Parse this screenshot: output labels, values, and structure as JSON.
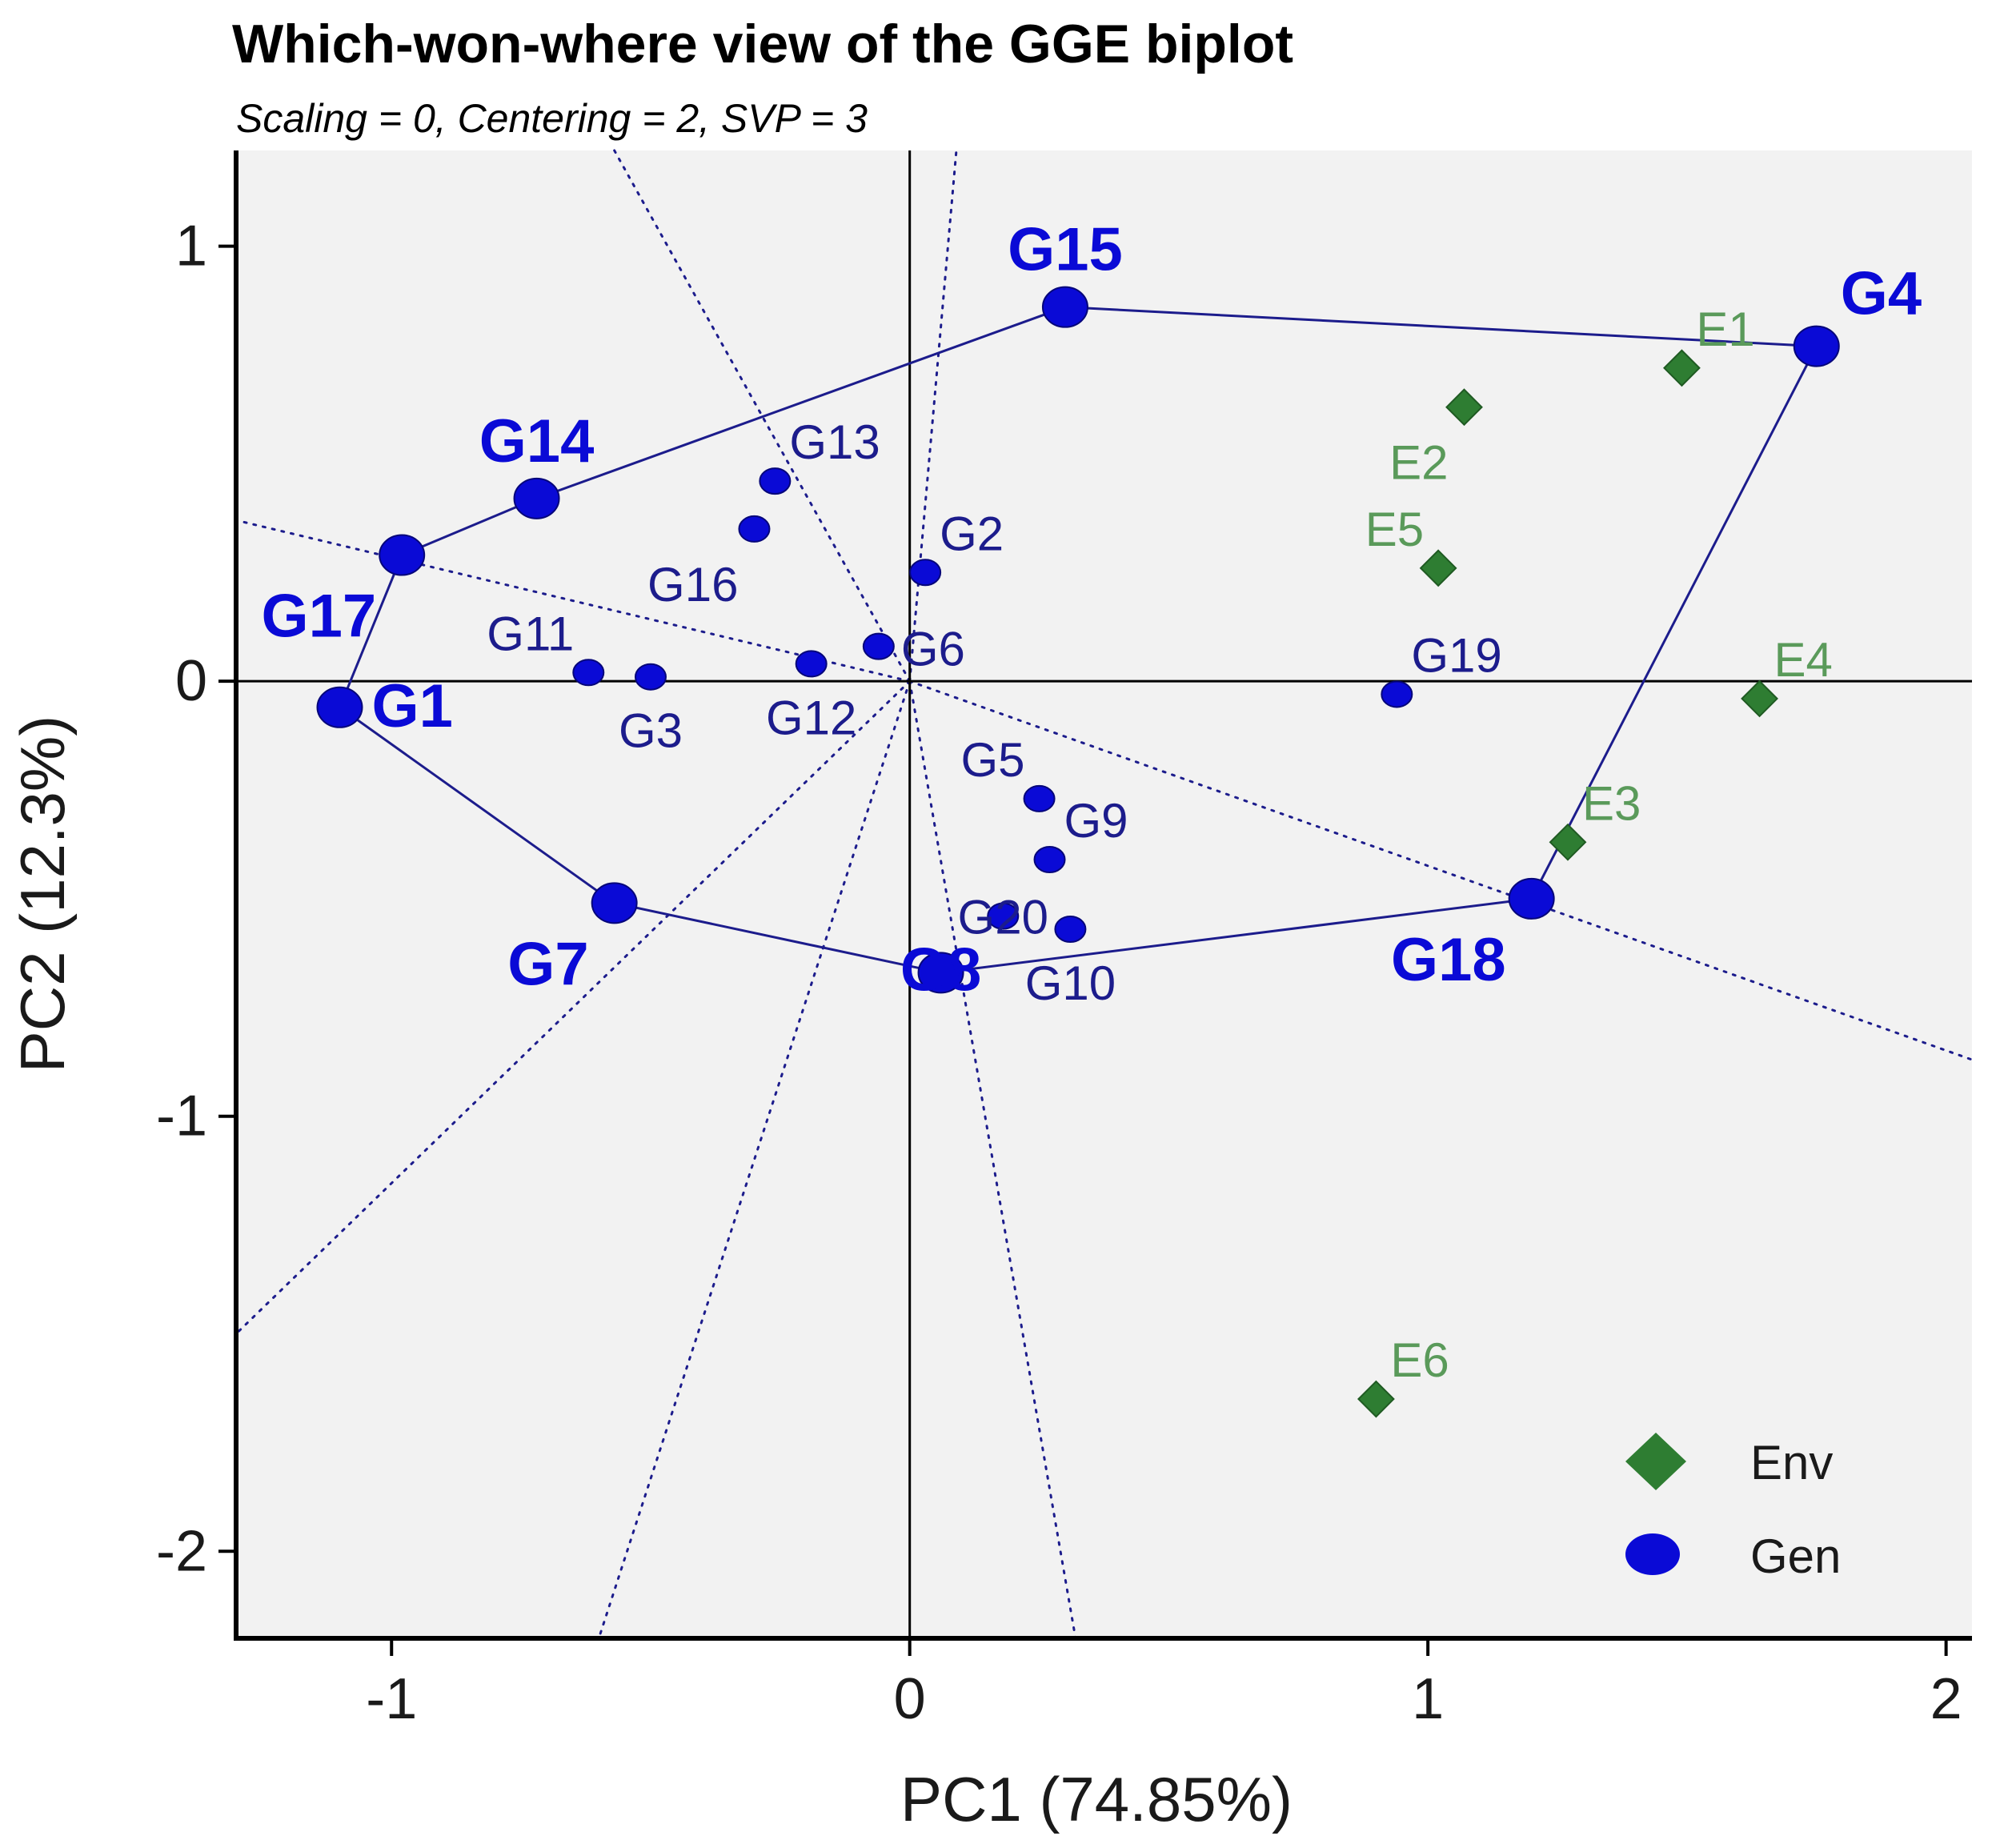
{
  "chart_data": {
    "type": "scatter",
    "title": "Which-won-where view of the GGE biplot",
    "subtitle": "Scaling = 0, Centering = 2, SVP = 3",
    "xlabel": "PC1 (74.85%)",
    "ylabel": "PC2 (12.3%)",
    "xlim": [
      -1.3,
      2.05
    ],
    "ylim": [
      -2.2,
      1.22
    ],
    "xticks": [
      -1,
      0,
      1,
      2
    ],
    "yticks": [
      -2,
      -1,
      0,
      1
    ],
    "colors": {
      "genotype": "#0a0ad6",
      "genotype_label": "#1c1c8c",
      "environment": "#2e7d32",
      "environment_label": "#5a9a5a",
      "hull": "#1c1c8c",
      "sector": "#1c1c8c",
      "panel": "#f2f2f2"
    },
    "genotypes": [
      {
        "name": "G1",
        "x": -1.1,
        "y": -0.06,
        "vertex": true,
        "label_pos": "right"
      },
      {
        "name": "G2",
        "x": 0.03,
        "y": 0.25,
        "vertex": false,
        "label_pos": "upper-right"
      },
      {
        "name": "G3",
        "x": -0.5,
        "y": 0.01,
        "vertex": false,
        "label_pos": "below"
      },
      {
        "name": "G4",
        "x": 1.75,
        "y": 0.77,
        "vertex": true,
        "label_pos": "upper-right"
      },
      {
        "name": "G5",
        "x": 0.25,
        "y": -0.27,
        "vertex": false,
        "label_pos": "upper-left"
      },
      {
        "name": "G6",
        "x": -0.06,
        "y": 0.08,
        "vertex": false,
        "label_pos": "right"
      },
      {
        "name": "G7",
        "x": -0.57,
        "y": -0.51,
        "vertex": true,
        "label_pos": "lower-left"
      },
      {
        "name": "G8",
        "x": 0.06,
        "y": -0.67,
        "vertex": true,
        "label_pos": "overlap"
      },
      {
        "name": "G9",
        "x": 0.27,
        "y": -0.41,
        "vertex": false,
        "label_pos": "upper-right"
      },
      {
        "name": "G10",
        "x": 0.31,
        "y": -0.57,
        "vertex": false,
        "label_pos": "below"
      },
      {
        "name": "G11",
        "x": -0.62,
        "y": 0.02,
        "vertex": false,
        "label_pos": "upper-left"
      },
      {
        "name": "G12",
        "x": -0.19,
        "y": 0.04,
        "vertex": false,
        "label_pos": "below"
      },
      {
        "name": "G13",
        "x": -0.26,
        "y": 0.46,
        "vertex": false,
        "label_pos": "upper-right"
      },
      {
        "name": "G14",
        "x": -0.72,
        "y": 0.42,
        "vertex": true,
        "label_pos": "above"
      },
      {
        "name": "G15",
        "x": 0.3,
        "y": 0.86,
        "vertex": true,
        "label_pos": "above"
      },
      {
        "name": "G16",
        "x": -0.3,
        "y": 0.35,
        "vertex": false,
        "label_pos": "lower-left"
      },
      {
        "name": "G17",
        "x": -0.98,
        "y": 0.29,
        "vertex": true,
        "label_pos": "lower-left"
      },
      {
        "name": "G18",
        "x": 1.2,
        "y": -0.5,
        "vertex": true,
        "label_pos": "lower-left"
      },
      {
        "name": "G19",
        "x": 0.94,
        "y": -0.03,
        "vertex": false,
        "label_pos": "upper-right"
      },
      {
        "name": "G20",
        "x": 0.18,
        "y": -0.54,
        "vertex": false,
        "label_pos": "overlap"
      }
    ],
    "environments": [
      {
        "name": "E1",
        "x": 1.49,
        "y": 0.72,
        "label_pos": "upper-right"
      },
      {
        "name": "E2",
        "x": 1.07,
        "y": 0.63,
        "label_pos": "lower-left"
      },
      {
        "name": "E3",
        "x": 1.27,
        "y": -0.37,
        "label_pos": "upper-right"
      },
      {
        "name": "E4",
        "x": 1.64,
        "y": -0.04,
        "label_pos": "upper-right"
      },
      {
        "name": "E5",
        "x": 1.02,
        "y": 0.26,
        "label_pos": "upper-left"
      },
      {
        "name": "E6",
        "x": 0.9,
        "y": -1.65,
        "label_pos": "upper-right"
      }
    ],
    "hull": [
      "G1",
      "G17",
      "G14",
      "G15",
      "G4",
      "G18",
      "G8",
      "G7"
    ],
    "sector_lines": [
      {
        "x": -0.57,
        "y": 1.22
      },
      {
        "x": 0.09,
        "y": 1.22
      },
      {
        "x": -1.3,
        "y": 0.37
      },
      {
        "x": -1.3,
        "y": -1.5
      },
      {
        "x": -0.6,
        "y": -2.2
      },
      {
        "x": 0.32,
        "y": -2.2
      },
      {
        "x": 2.05,
        "y": -0.87
      }
    ],
    "legend": {
      "position": "bottom-right",
      "items": [
        {
          "label": "Env",
          "marker": "diamond"
        },
        {
          "label": "Gen",
          "marker": "circle"
        }
      ]
    }
  }
}
